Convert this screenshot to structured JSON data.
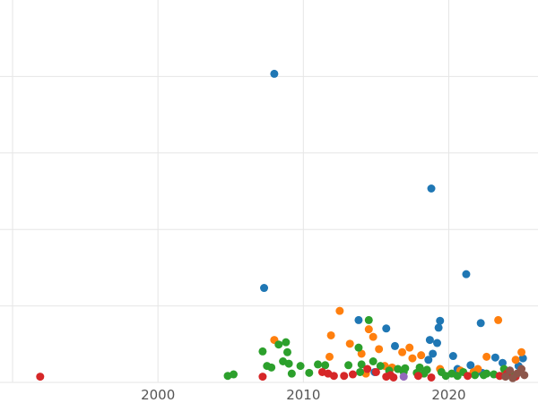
{
  "chart_data": {
    "type": "scatter",
    "title": "",
    "xlabel": "",
    "ylabel": "",
    "xlim": [
      1990,
      2027
    ],
    "ylim": [
      0,
      5
    ],
    "x_ticks": [
      2000,
      2010,
      2020
    ],
    "y_ticks": [
      0,
      1,
      2,
      3,
      4
    ],
    "y_tick_labels_visible": false,
    "grid": true,
    "legend": "none",
    "series": [
      {
        "color": "#1f77b4",
        "points": [
          [
            2008.0,
            4.0
          ],
          [
            2018.8,
            2.5
          ],
          [
            2021.2,
            1.38
          ],
          [
            2007.3,
            1.2
          ],
          [
            2019.4,
            0.77
          ],
          [
            2022.2,
            0.74
          ],
          [
            2013.8,
            0.78
          ],
          [
            2019.3,
            0.68
          ],
          [
            2015.7,
            0.67
          ],
          [
            2018.7,
            0.52
          ],
          [
            2019.2,
            0.48
          ],
          [
            2016.3,
            0.44
          ],
          [
            2018.9,
            0.34
          ],
          [
            2020.3,
            0.31
          ],
          [
            2023.2,
            0.29
          ],
          [
            2025.1,
            0.28
          ],
          [
            2018.6,
            0.26
          ],
          [
            2021.5,
            0.19
          ],
          [
            2023.7,
            0.22
          ],
          [
            2024.8,
            0.18
          ],
          [
            2020.6,
            0.14
          ],
          [
            2014.9,
            0.1
          ],
          [
            2022.3,
            0.09
          ],
          [
            2024.2,
            0.12
          ]
        ]
      },
      {
        "color": "#ff7f0e",
        "points": [
          [
            2012.5,
            0.9
          ],
          [
            2023.4,
            0.78
          ],
          [
            2014.5,
            0.66
          ],
          [
            2011.9,
            0.58
          ],
          [
            2014.8,
            0.56
          ],
          [
            2008.0,
            0.52
          ],
          [
            2013.2,
            0.47
          ],
          [
            2017.3,
            0.42
          ],
          [
            2016.8,
            0.36
          ],
          [
            2014.0,
            0.34
          ],
          [
            2015.2,
            0.4
          ],
          [
            2022.6,
            0.3
          ],
          [
            2018.1,
            0.32
          ],
          [
            2017.5,
            0.28
          ],
          [
            2011.8,
            0.3
          ],
          [
            2024.6,
            0.26
          ],
          [
            2025.0,
            0.36
          ],
          [
            2015.6,
            0.18
          ],
          [
            2019.4,
            0.14
          ],
          [
            2020.8,
            0.12
          ],
          [
            2022.0,
            0.14
          ],
          [
            2016.1,
            0.16
          ],
          [
            2014.3,
            0.08
          ],
          [
            2023.9,
            0.1
          ],
          [
            2021.7,
            0.1
          ]
        ]
      },
      {
        "color": "#2ca02c",
        "points": [
          [
            2014.5,
            0.78
          ],
          [
            2008.8,
            0.49
          ],
          [
            2008.3,
            0.46
          ],
          [
            2013.8,
            0.42
          ],
          [
            2007.2,
            0.37
          ],
          [
            2008.9,
            0.36
          ],
          [
            2014.8,
            0.24
          ],
          [
            2008.6,
            0.24
          ],
          [
            2009.0,
            0.21
          ],
          [
            2007.5,
            0.18
          ],
          [
            2007.8,
            0.16
          ],
          [
            2009.8,
            0.18
          ],
          [
            2011.0,
            0.2
          ],
          [
            2011.5,
            0.19
          ],
          [
            2013.1,
            0.19
          ],
          [
            2014.0,
            0.2
          ],
          [
            2015.3,
            0.18
          ],
          [
            2016.5,
            0.14
          ],
          [
            2017.0,
            0.15
          ],
          [
            2018.0,
            0.16
          ],
          [
            2018.5,
            0.13
          ],
          [
            2019.5,
            0.1
          ],
          [
            2020.2,
            0.08
          ],
          [
            2021.0,
            0.1
          ],
          [
            2021.8,
            0.06
          ],
          [
            2022.4,
            0.06
          ],
          [
            2023.5,
            0.05
          ],
          [
            2023.8,
            0.14
          ],
          [
            2024.4,
            0.06
          ],
          [
            2004.8,
            0.05
          ],
          [
            2005.2,
            0.07
          ],
          [
            2009.2,
            0.08
          ],
          [
            2010.4,
            0.09
          ],
          [
            2015.9,
            0.12
          ],
          [
            2016.9,
            0.1
          ],
          [
            2018.3,
            0.08
          ],
          [
            2019.8,
            0.05
          ],
          [
            2020.6,
            0.05
          ],
          [
            2022.6,
            0.08
          ],
          [
            2013.9,
            0.1
          ],
          [
            2017.8,
            0.09
          ],
          [
            2023.1,
            0.07
          ]
        ]
      },
      {
        "color": "#d62728",
        "points": [
          [
            1991.9,
            0.04
          ],
          [
            2007.2,
            0.04
          ],
          [
            2011.3,
            0.1
          ],
          [
            2011.7,
            0.08
          ],
          [
            2012.1,
            0.05
          ],
          [
            2012.8,
            0.05
          ],
          [
            2013.4,
            0.07
          ],
          [
            2014.4,
            0.14
          ],
          [
            2015.0,
            0.1
          ],
          [
            2015.7,
            0.04
          ],
          [
            2016.2,
            0.03
          ],
          [
            2017.9,
            0.05
          ],
          [
            2018.8,
            0.03
          ],
          [
            2023.5,
            0.05
          ],
          [
            2024.0,
            0.08
          ],
          [
            2024.6,
            0.04
          ],
          [
            2016.0,
            0.06
          ],
          [
            2021.3,
            0.05
          ]
        ]
      },
      {
        "color": "#9467bd",
        "points": [
          [
            2016.9,
            0.04
          ]
        ]
      },
      {
        "color": "#8c564b",
        "points": [
          [
            2024.2,
            0.12
          ],
          [
            2025.0,
            0.14
          ],
          [
            2024.7,
            0.08
          ],
          [
            2025.2,
            0.06
          ],
          [
            2023.9,
            0.04
          ],
          [
            2024.4,
            0.02
          ]
        ]
      }
    ]
  }
}
